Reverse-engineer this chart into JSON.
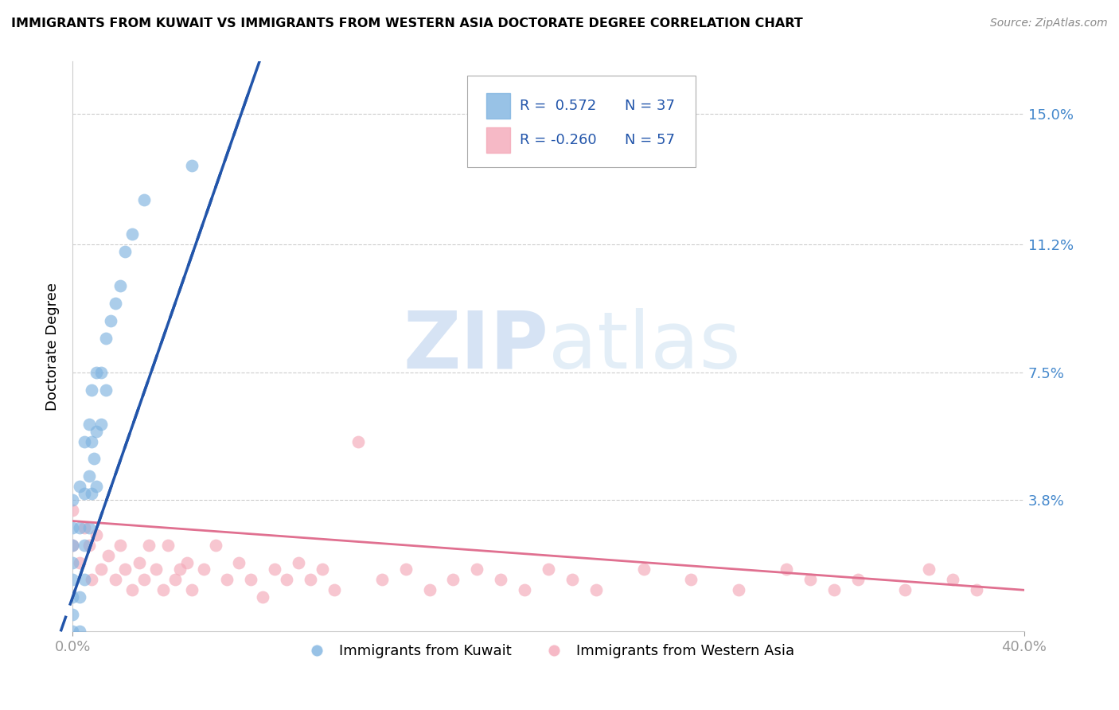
{
  "title": "IMMIGRANTS FROM KUWAIT VS IMMIGRANTS FROM WESTERN ASIA DOCTORATE DEGREE CORRELATION CHART",
  "source": "Source: ZipAtlas.com",
  "ylabel": "Doctorate Degree",
  "ytick_labels": [
    "15.0%",
    "11.2%",
    "7.5%",
    "3.8%"
  ],
  "ytick_values": [
    0.15,
    0.112,
    0.075,
    0.038
  ],
  "xlim": [
    0.0,
    0.4
  ],
  "ylim": [
    0.0,
    0.165
  ],
  "legend_r1": "R =  0.572",
  "legend_n1": "N = 37",
  "legend_r2": "R = -0.260",
  "legend_n2": "N = 57",
  "legend_label_kuwait": "Immigrants from Kuwait",
  "legend_label_western": "Immigrants from Western Asia",
  "watermark_zip": "ZIP",
  "watermark_atlas": "atlas",
  "blue_color": "#7fb3e0",
  "pink_color": "#f4a8b8",
  "blue_line_color": "#2255aa",
  "pink_line_color": "#e07090",
  "blue_trend_x": [
    -0.005,
    0.075
  ],
  "blue_trend_y": [
    0.0,
    0.158
  ],
  "pink_trend_x": [
    0.0,
    0.4
  ],
  "pink_trend_y": [
    0.032,
    0.012
  ],
  "kuwait_x": [
    0.0,
    0.0,
    0.0,
    0.0,
    0.0,
    0.0,
    0.0,
    0.0,
    0.003,
    0.003,
    0.003,
    0.003,
    0.005,
    0.005,
    0.005,
    0.005,
    0.007,
    0.007,
    0.007,
    0.008,
    0.008,
    0.008,
    0.009,
    0.01,
    0.01,
    0.01,
    0.012,
    0.012,
    0.014,
    0.014,
    0.016,
    0.018,
    0.02,
    0.022,
    0.025,
    0.03,
    0.05
  ],
  "kuwait_y": [
    0.0,
    0.005,
    0.01,
    0.015,
    0.02,
    0.025,
    0.03,
    0.038,
    0.0,
    0.01,
    0.03,
    0.042,
    0.015,
    0.025,
    0.04,
    0.055,
    0.03,
    0.045,
    0.06,
    0.04,
    0.055,
    0.07,
    0.05,
    0.042,
    0.058,
    0.075,
    0.06,
    0.075,
    0.07,
    0.085,
    0.09,
    0.095,
    0.1,
    0.11,
    0.115,
    0.125,
    0.135
  ],
  "western_x": [
    0.0,
    0.0,
    0.003,
    0.005,
    0.007,
    0.008,
    0.01,
    0.012,
    0.015,
    0.018,
    0.02,
    0.022,
    0.025,
    0.028,
    0.03,
    0.032,
    0.035,
    0.038,
    0.04,
    0.043,
    0.045,
    0.048,
    0.05,
    0.055,
    0.06,
    0.065,
    0.07,
    0.075,
    0.08,
    0.085,
    0.09,
    0.095,
    0.1,
    0.105,
    0.11,
    0.12,
    0.13,
    0.14,
    0.15,
    0.16,
    0.17,
    0.18,
    0.19,
    0.2,
    0.21,
    0.22,
    0.24,
    0.26,
    0.28,
    0.3,
    0.31,
    0.32,
    0.33,
    0.35,
    0.36,
    0.37,
    0.38
  ],
  "western_y": [
    0.025,
    0.035,
    0.02,
    0.03,
    0.025,
    0.015,
    0.028,
    0.018,
    0.022,
    0.015,
    0.025,
    0.018,
    0.012,
    0.02,
    0.015,
    0.025,
    0.018,
    0.012,
    0.025,
    0.015,
    0.018,
    0.02,
    0.012,
    0.018,
    0.025,
    0.015,
    0.02,
    0.015,
    0.01,
    0.018,
    0.015,
    0.02,
    0.015,
    0.018,
    0.012,
    0.055,
    0.015,
    0.018,
    0.012,
    0.015,
    0.018,
    0.015,
    0.012,
    0.018,
    0.015,
    0.012,
    0.018,
    0.015,
    0.012,
    0.018,
    0.015,
    0.012,
    0.015,
    0.012,
    0.018,
    0.015,
    0.012
  ]
}
